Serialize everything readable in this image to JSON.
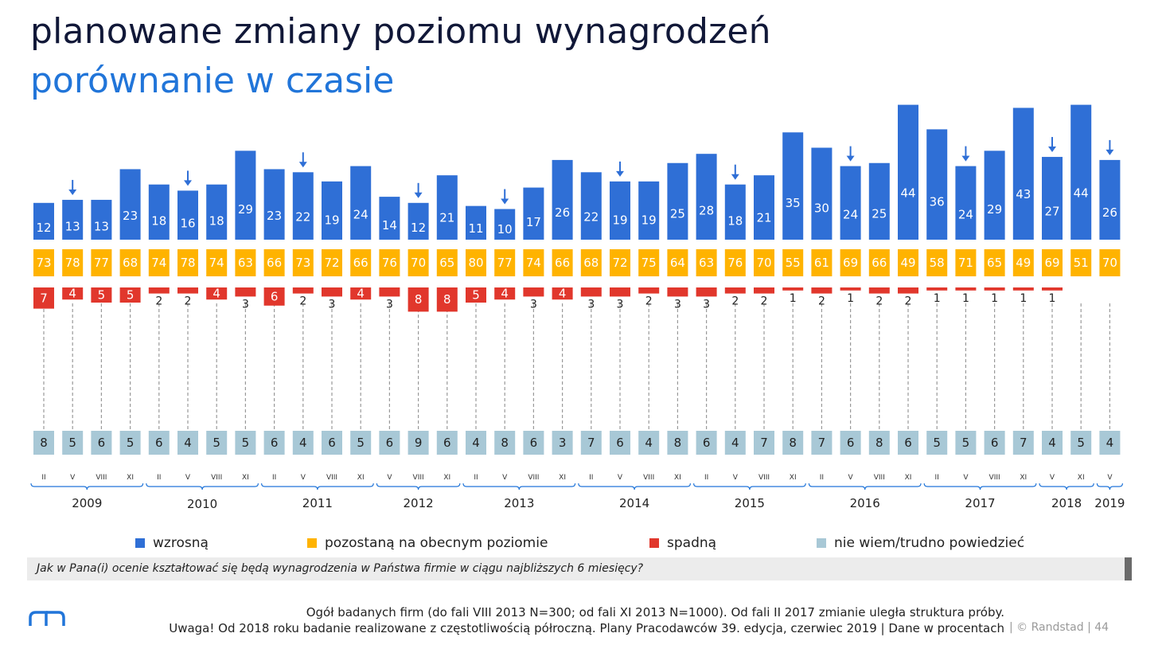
{
  "title": "planowane zmiany poziomu wynagrodzeń",
  "subtitle": "porównanie w czasie",
  "colors": {
    "wzrosna": "#2f6fd6",
    "pozostana": "#ffb300",
    "spadna": "#e1372c",
    "nie_wiem": "#a8c8d6",
    "title": "#111838",
    "subtitle": "#2175d9"
  },
  "chart_data": {
    "type": "bar",
    "categories": [
      "II",
      "V",
      "VIII",
      "XI",
      "II",
      "V",
      "VIII",
      "XI",
      "II",
      "V",
      "VIII",
      "XI",
      "V",
      "VIII",
      "XI",
      "II",
      "V",
      "VIII",
      "XI",
      "II",
      "V",
      "VIII",
      "XI",
      "II",
      "V",
      "VIII",
      "XI",
      "II",
      "V",
      "VIII",
      "XI",
      "II",
      "V",
      "VIII",
      "XI",
      "V",
      "XI",
      "V"
    ],
    "years": [
      {
        "label": "2009",
        "first": 0,
        "last": 3
      },
      {
        "label": "2010",
        "first": 4,
        "last": 7
      },
      {
        "label": "2011",
        "first": 8,
        "last": 11
      },
      {
        "label": "2012",
        "first": 12,
        "last": 14
      },
      {
        "label": "2013",
        "first": 15,
        "last": 18
      },
      {
        "label": "2014",
        "first": 19,
        "last": 22
      },
      {
        "label": "2015",
        "first": 23,
        "last": 26
      },
      {
        "label": "2016",
        "first": 27,
        "last": 30
      },
      {
        "label": "2017",
        "first": 31,
        "last": 34
      },
      {
        "label": "2018",
        "first": 35,
        "last": 36
      },
      {
        "label": "2019",
        "first": 37,
        "last": 37
      }
    ],
    "arrow_indices": [
      1,
      5,
      9,
      13,
      16,
      20,
      24,
      28,
      32,
      35,
      37
    ],
    "series": [
      {
        "name": "wzrosną",
        "values": [
          12,
          13,
          13,
          23,
          18,
          16,
          18,
          29,
          23,
          22,
          19,
          24,
          14,
          12,
          21,
          11,
          10,
          17,
          26,
          22,
          19,
          19,
          25,
          28,
          18,
          21,
          35,
          30,
          24,
          25,
          44,
          36,
          24,
          29,
          43,
          27,
          44,
          26
        ]
      },
      {
        "name": "pozostaną na obecnym poziomie",
        "values": [
          73,
          78,
          77,
          68,
          74,
          78,
          74,
          63,
          66,
          73,
          72,
          66,
          76,
          70,
          65,
          80,
          77,
          74,
          66,
          68,
          72,
          75,
          64,
          63,
          76,
          70,
          55,
          61,
          69,
          66,
          49,
          58,
          71,
          65,
          49,
          69,
          51,
          70
        ]
      },
      {
        "name": "spadną",
        "values": [
          7,
          4,
          5,
          5,
          2,
          2,
          4,
          3,
          6,
          2,
          3,
          4,
          3,
          8,
          8,
          5,
          4,
          3,
          4,
          3,
          3,
          2,
          3,
          3,
          2,
          2,
          1,
          2,
          1,
          2,
          2,
          1,
          1,
          1,
          1,
          1,
          null,
          null
        ]
      },
      {
        "name": "nie wiem/trudno powiedzieć",
        "values": [
          8,
          5,
          6,
          5,
          6,
          4,
          5,
          5,
          6,
          4,
          6,
          5,
          6,
          9,
          6,
          4,
          8,
          6,
          3,
          7,
          6,
          4,
          8,
          6,
          4,
          7,
          8,
          7,
          6,
          8,
          6,
          5,
          5,
          6,
          7,
          4,
          5,
          4
        ]
      }
    ]
  },
  "legend": [
    {
      "key": "wzrosna",
      "label": "wzrosną"
    },
    {
      "key": "pozostana",
      "label": "pozostaną na obecnym poziomie"
    },
    {
      "key": "spadna",
      "label": "spadną"
    },
    {
      "key": "nie_wiem",
      "label": "nie wiem/trudno powiedzieć"
    }
  ],
  "question": "Jak w Pana(i) ocenie kształtować się będą wynagrodzenia w Państwa firmie w ciągu najbliższych 6 miesięcy?",
  "footer": {
    "note1": "Ogół badanych firm (do fali VIII 2013 N=300; od fali XI 2013 N=1000).  Od fali II 2017 zmianie uległa struktura próby.",
    "note2": "Uwaga! Od 2018 roku badanie realizowane z częstotliwością półroczną. Plany Pracodawców 39. edycja, czerwiec 2019  | Dane w procentach",
    "copyright": "|  © Randstad  |  44"
  }
}
